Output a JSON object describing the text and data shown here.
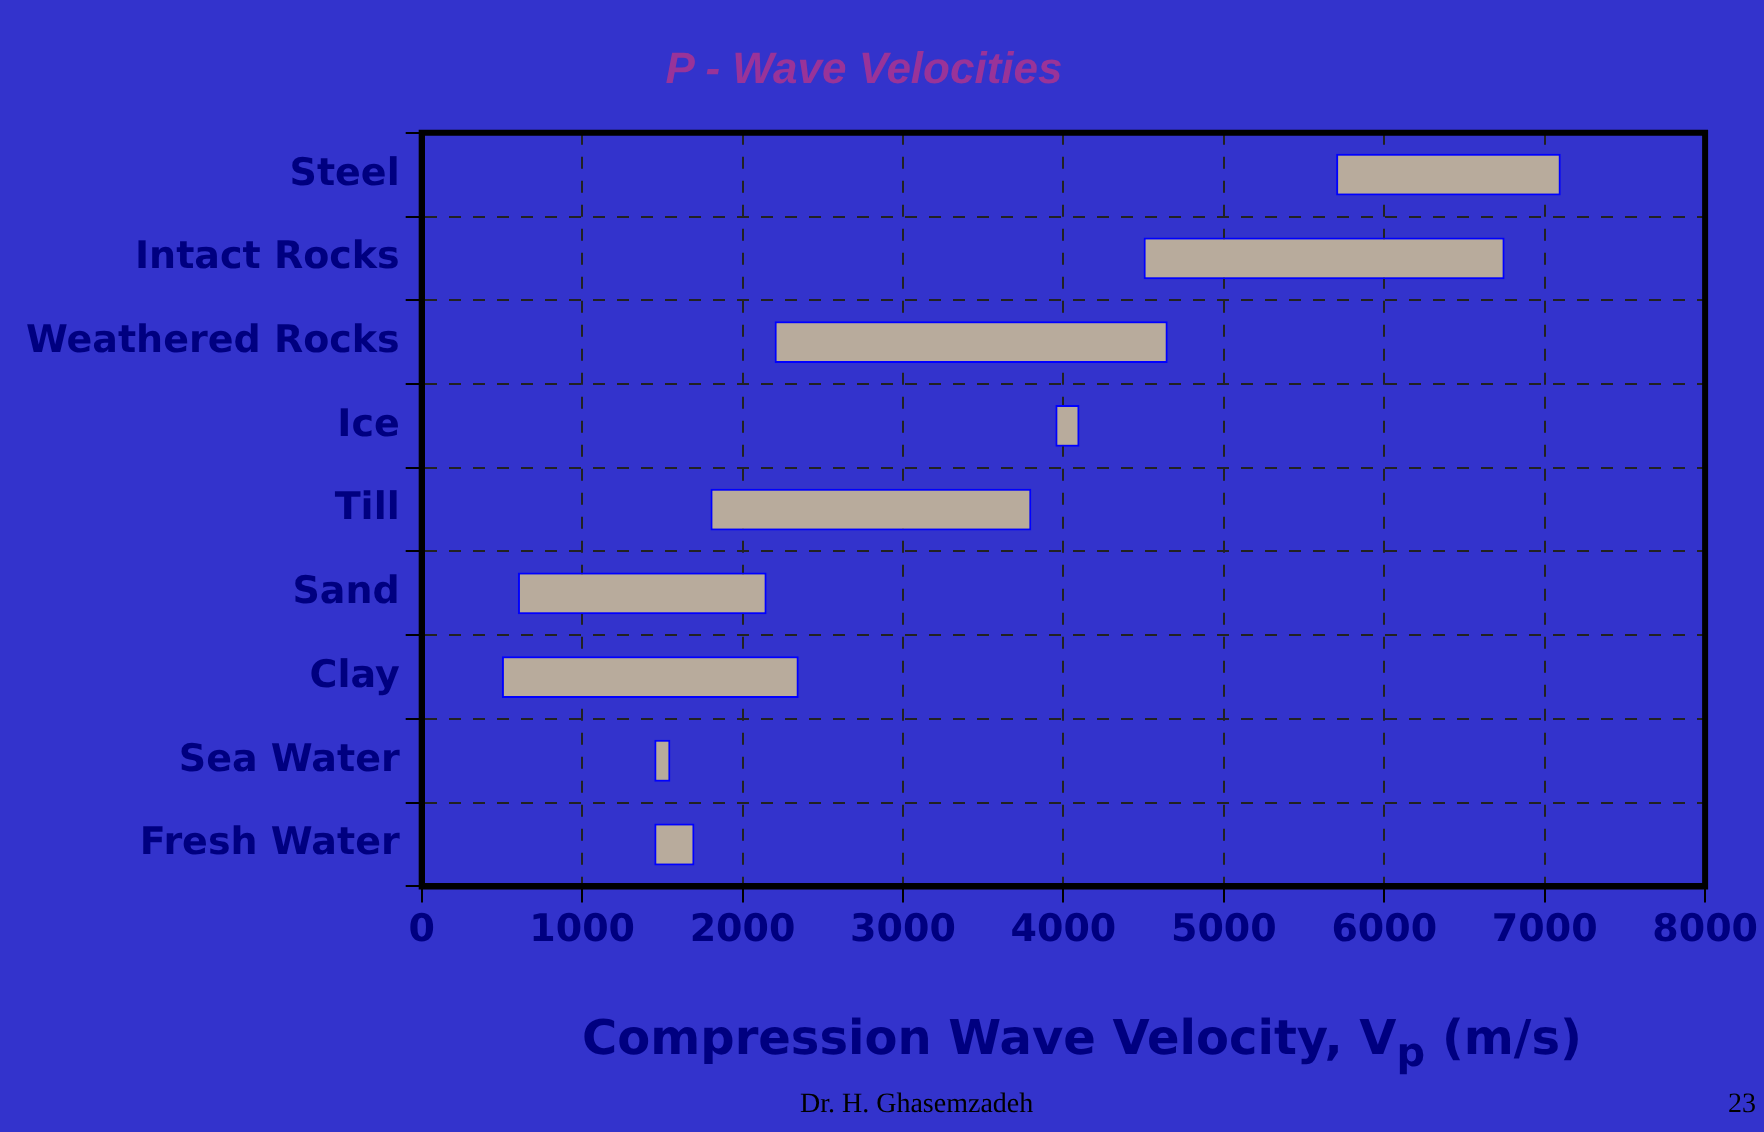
{
  "chart_data": {
    "type": "bar",
    "orientation": "horizontal",
    "title": "P - Wave Velocities",
    "xlabel": "Compression Wave Velocity, V$_{p}$ (m/s)",
    "categories": [
      "Steel",
      "Intact Rocks",
      "Weathered Rocks",
      "Ice",
      "Till",
      "Sand",
      "Clay",
      "Sea Water",
      "Fresh Water"
    ],
    "base": [
      5700,
      4500,
      2200,
      3950,
      1800,
      600,
      500,
      1450,
      1450
    ],
    "values": [
      1400,
      2250,
      2450,
      150,
      2000,
      1550,
      1850,
      100,
      250
    ],
    "color": "#b8ab9c",
    "xlim": [
      0,
      8000
    ],
    "xticks": [
      0,
      1000,
      2000,
      3000,
      4000,
      5000,
      6000,
      7000,
      8000
    ],
    "grid": true,
    "legend": false,
    "annotations": [
      "Dr. H. Ghasemzadeh",
      "23"
    ]
  }
}
